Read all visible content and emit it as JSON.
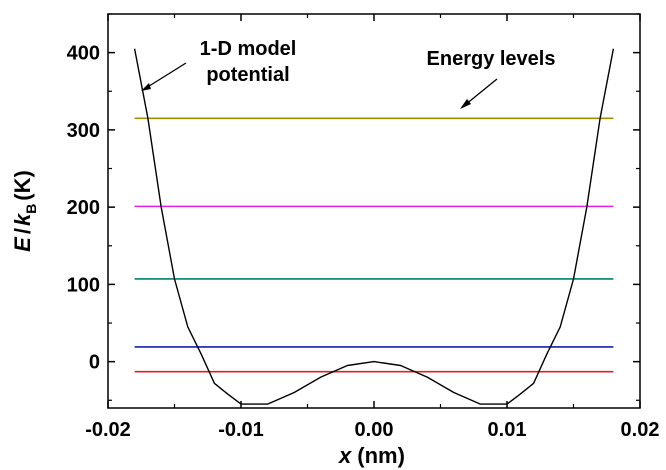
{
  "chart_data": {
    "type": "line",
    "x_axis": {
      "var": "x",
      "unit": "(nm)",
      "range": [
        -0.02,
        0.02
      ],
      "ticks": [
        -0.02,
        -0.01,
        0.0,
        0.01,
        0.02
      ],
      "tick_labels": [
        "-0.02",
        "-0.01",
        "0.00",
        "0.01",
        "0.02"
      ]
    },
    "y_axis": {
      "var_E": "E",
      "slash": "/",
      "var_k": "k",
      "sub": "B",
      "unit": "(K)",
      "range": [
        -60,
        450
      ],
      "ticks": [
        0,
        100,
        200,
        300,
        400
      ],
      "tick_labels": [
        "0",
        "100",
        "200",
        "300",
        "400"
      ]
    },
    "series": [
      {
        "name": "1-D model potential",
        "color": "#000000",
        "x": [
          -0.018,
          -0.017,
          -0.016,
          -0.015,
          -0.014,
          -0.013,
          -0.012,
          -0.011,
          -0.01,
          -0.008,
          -0.006,
          -0.004,
          -0.002,
          0.0,
          0.002,
          0.004,
          0.006,
          0.008,
          0.01,
          0.011,
          0.012,
          0.013,
          0.014,
          0.015,
          0.016,
          0.017,
          0.018
        ],
        "y": [
          405,
          315,
          200,
          107,
          45,
          10,
          -28,
          -42,
          -55,
          -55,
          -40,
          -20,
          -5,
          0,
          -5,
          -20,
          -40,
          -55,
          -55,
          -42,
          -28,
          10,
          45,
          107,
          200,
          315,
          405
        ]
      }
    ],
    "energy_levels": [
      {
        "value": 315,
        "color": "#a09000"
      },
      {
        "value": 201,
        "color": "#e020e0"
      },
      {
        "value": 107,
        "color": "#008070"
      },
      {
        "value": 19,
        "color": "#1020b0"
      },
      {
        "value": -13,
        "color": "#e02020"
      }
    ],
    "energy_levels_xrange": [
      -0.018,
      0.018
    ],
    "annotations": [
      {
        "line1": "1-D model",
        "line2": "potential"
      },
      {
        "line1": "Energy levels"
      }
    ]
  }
}
